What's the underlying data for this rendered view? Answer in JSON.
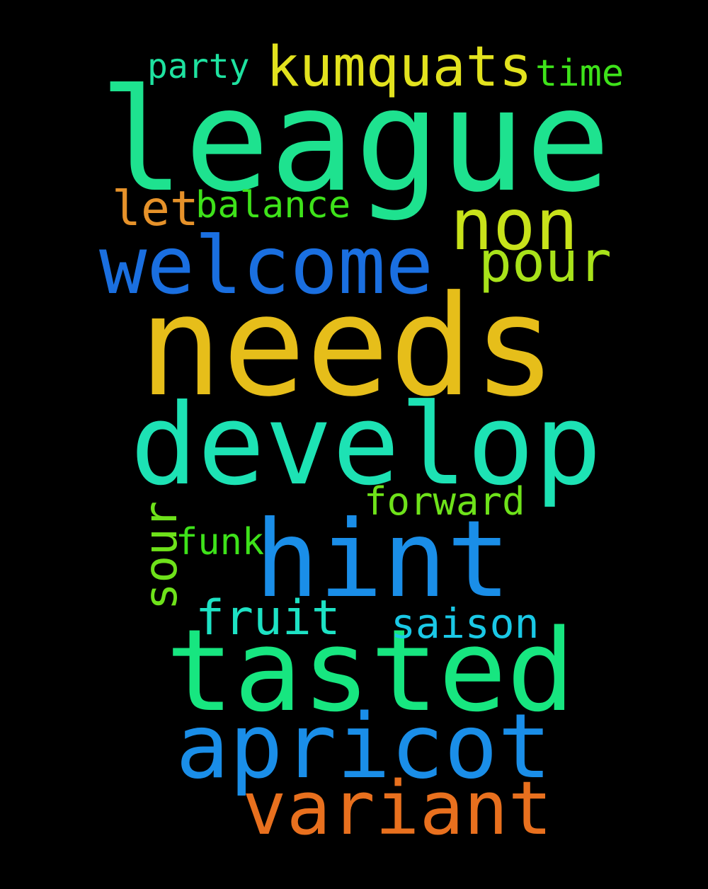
{
  "background": "#000000",
  "words": {
    "league": {
      "text": "league",
      "color": "#1ee28f"
    },
    "needs": {
      "text": "needs",
      "color": "#e6be1a"
    },
    "develop": {
      "text": "develop",
      "color": "#1de2b4"
    },
    "tasted": {
      "text": "tasted",
      "color": "#17e680"
    },
    "hint": {
      "text": "hint",
      "color": "#1a8ee8"
    },
    "apricot": {
      "text": "apricot",
      "color": "#1a8ee8"
    },
    "welcome": {
      "text": "welcome",
      "color": "#1a6fe0"
    },
    "variant": {
      "text": "variant",
      "color": "#e8701e"
    },
    "non": {
      "text": "non",
      "color": "#c8e21a"
    },
    "kumquats": {
      "text": "kumquats",
      "color": "#e2e21e"
    },
    "pour": {
      "text": "pour",
      "color": "#a8e21a"
    },
    "fruit": {
      "text": "fruit",
      "color": "#1de2c4"
    },
    "let": {
      "text": "let",
      "color": "#e6922a"
    },
    "saison": {
      "text": "saison",
      "color": "#1ac8e6"
    },
    "balance": {
      "text": "balance",
      "color": "#3ee21a"
    },
    "forward": {
      "text": "forward",
      "color": "#6ee21a"
    },
    "funk": {
      "text": "funk",
      "color": "#3ee21a"
    },
    "party": {
      "text": "party",
      "color": "#1ee2a0"
    },
    "time": {
      "text": "time",
      "color": "#3ee21a"
    },
    "sour": {
      "text": "sour",
      "color": "#6ee21a"
    }
  }
}
